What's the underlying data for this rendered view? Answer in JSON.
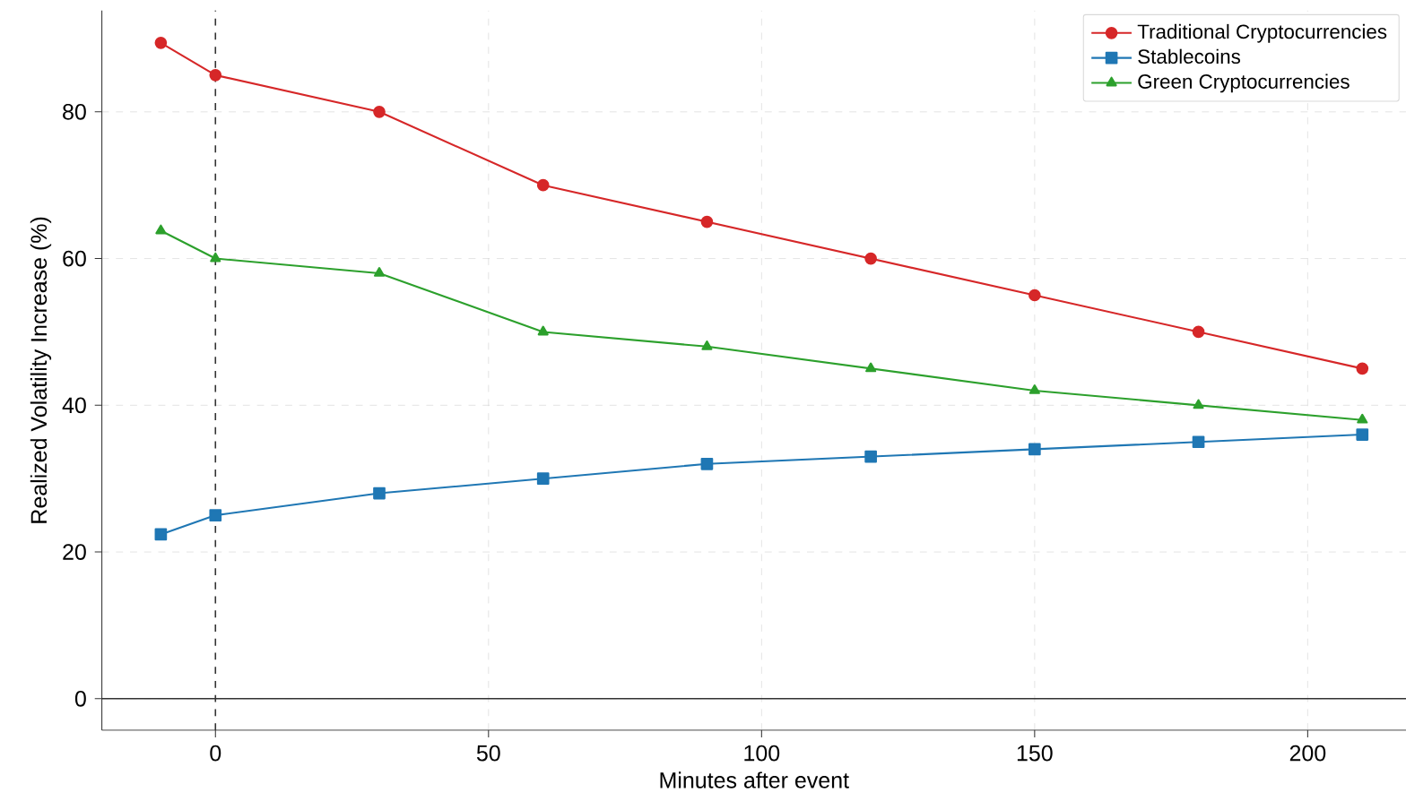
{
  "chart_data": {
    "type": "line",
    "xlabel": "Minutes after event",
    "ylabel": "Realized Volatility Increase (%)",
    "x": [
      -10,
      0,
      30,
      60,
      90,
      120,
      150,
      180,
      210
    ],
    "series": [
      {
        "name": "Traditional Cryptocurrencies",
        "color": "#d62728",
        "marker": "circle",
        "values": [
          89.4,
          85,
          80,
          70,
          65,
          60,
          55,
          50,
          45
        ]
      },
      {
        "name": "Stablecoins",
        "color": "#1f77b4",
        "marker": "square",
        "values": [
          22.4,
          25,
          28,
          30,
          32,
          33,
          34,
          35,
          36
        ]
      },
      {
        "name": "Green Cryptocurrencies",
        "color": "#2ca02c",
        "marker": "triangle",
        "values": [
          63.8,
          60,
          58,
          50,
          48,
          45,
          42,
          40,
          38
        ]
      }
    ],
    "xlim": [
      -20.8,
      218
    ],
    "ylim": [
      -4.3,
      93.8
    ],
    "xticks": [
      0,
      50,
      100,
      150,
      200
    ],
    "yticks": [
      0,
      20,
      40,
      60,
      80
    ],
    "ref_lines": [
      {
        "axis": "x",
        "value": 0,
        "line_style": "dashed",
        "color": "#333333"
      },
      {
        "axis": "y",
        "value": 0,
        "line_style": "solid",
        "color": "#333333"
      }
    ],
    "grid": true,
    "legend": "top right",
    "line_style": "solid"
  }
}
